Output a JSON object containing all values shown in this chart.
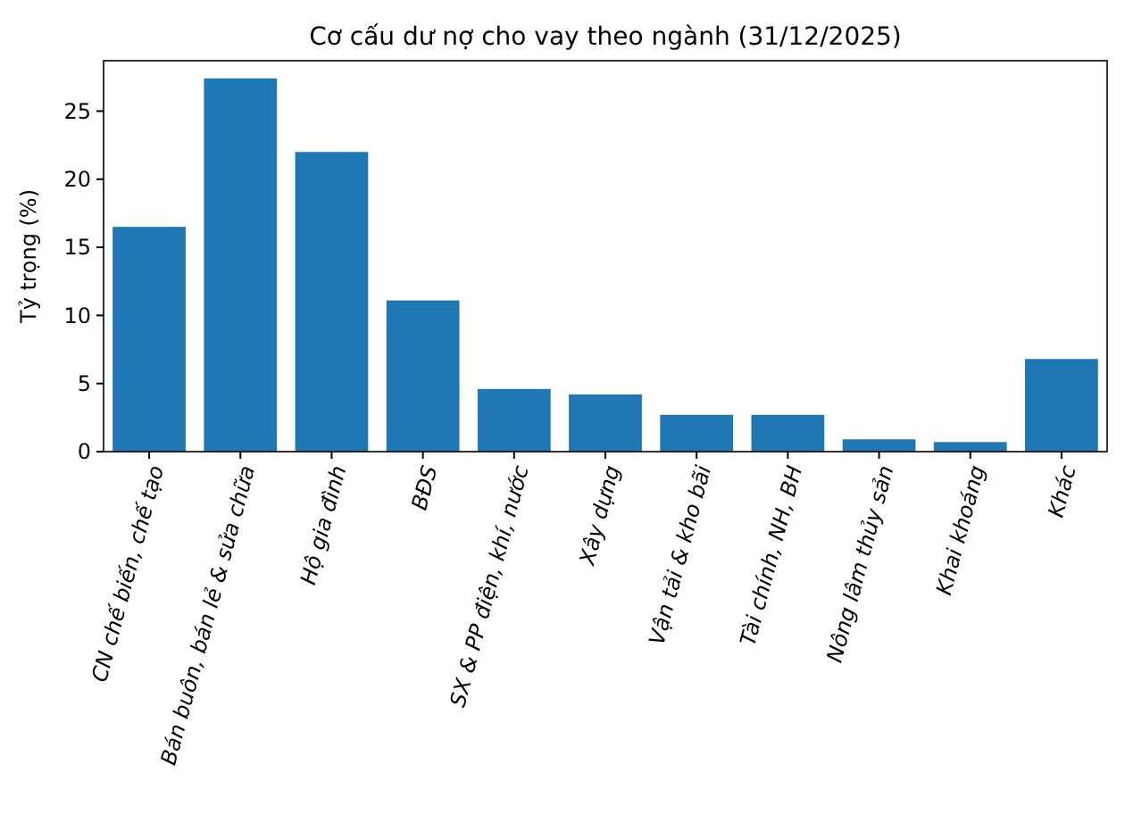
{
  "chart_data": {
    "type": "bar",
    "title": "Cơ cấu dư nợ cho vay theo ngành (31/12/2025)",
    "ylabel": "Tỷ trọng (%)",
    "categories": [
      "CN chế biến, chế tạo",
      "Bán buôn, bán lẻ & sửa chữa",
      "Hộ gia đình",
      "BĐS",
      "SX & PP điện, khí, nước",
      "Xây dựng",
      "Vận tải & kho bãi",
      "Tài chính, NH, BH",
      "Nông lâm thủy sản",
      "Khai khoáng",
      "Khác"
    ],
    "values": [
      16.5,
      27.4,
      22.0,
      11.1,
      4.6,
      4.2,
      2.7,
      2.7,
      0.9,
      0.7,
      6.8
    ],
    "color": "#1f77b4",
    "ylim": [
      0,
      28.7
    ],
    "yticks": [
      0,
      5,
      10,
      15,
      20,
      25
    ],
    "grid": false
  }
}
